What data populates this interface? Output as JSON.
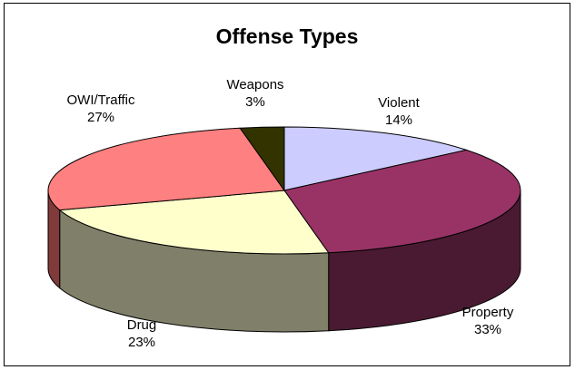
{
  "chart_data": {
    "type": "pie",
    "title": "Offense Types",
    "slices": [
      {
        "label": "Violent",
        "value": 14,
        "pct_label": "14%",
        "color": "#CCCCFF",
        "side_color": "#8A8AB0"
      },
      {
        "label": "Property",
        "value": 33,
        "pct_label": "33%",
        "color": "#993366",
        "side_color": "#4A1A32"
      },
      {
        "label": "Drug",
        "value": 23,
        "pct_label": "23%",
        "color": "#FFFFCC",
        "side_color": "#80806A"
      },
      {
        "label": "OWI/Traffic",
        "value": 27,
        "pct_label": "27%",
        "color": "#FF8080",
        "side_color": "#803A3A"
      },
      {
        "label": "Weapons",
        "value": 3,
        "pct_label": "3%",
        "color": "#333300",
        "side_color": "#1A1A00"
      }
    ]
  }
}
